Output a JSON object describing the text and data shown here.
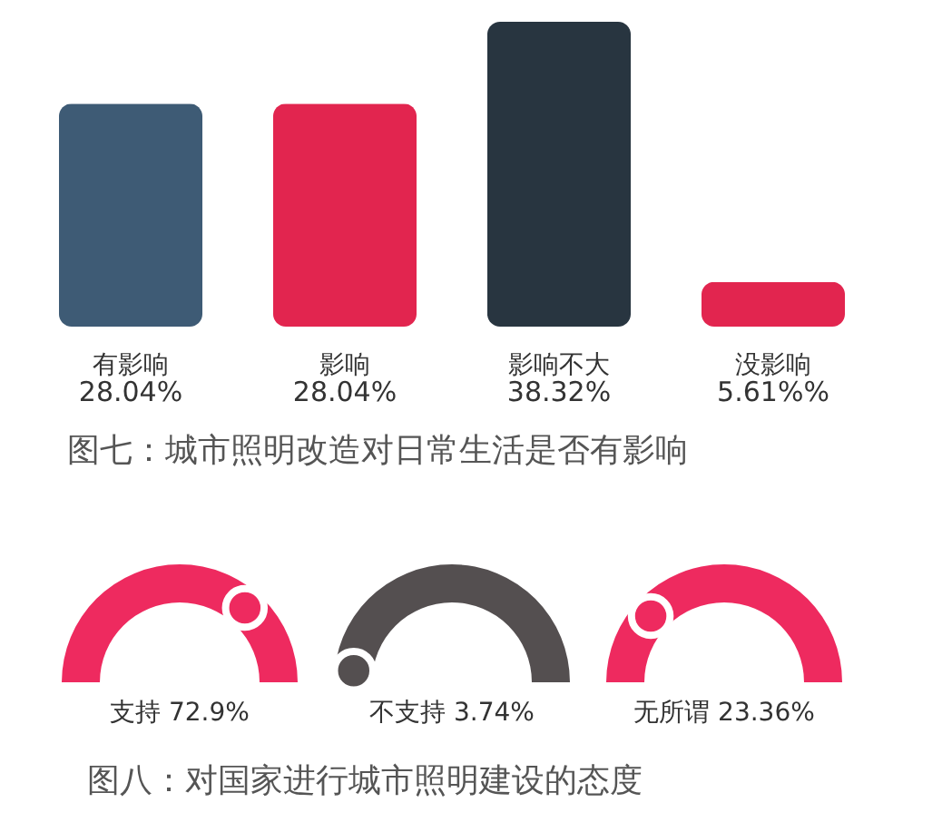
{
  "chart_data": [
    {
      "type": "bar",
      "title": "图七：城市照明改造对日常生活是否有影响",
      "categories": [
        "有影响",
        "影响",
        "影响不大",
        "没影响"
      ],
      "values": [
        28.04,
        28.04,
        38.32,
        5.61
      ],
      "colors": [
        "#3e5b75",
        "#e2254f",
        "#283540",
        "#e2254f"
      ],
      "value_labels": [
        "28.04%",
        "28.04%",
        "38.32%",
        "5.61%%"
      ]
    },
    {
      "type": "other",
      "title": "图八：对国家进行城市照明建设的态度",
      "categories": [
        "支持",
        "不支持",
        "无所谓"
      ],
      "values": [
        72.9,
        3.74,
        23.36
      ],
      "colors": [
        "#ee2a5f",
        "#544f50",
        "#ee2a5f"
      ],
      "value_labels": [
        "72.9%",
        "3.74%",
        "23.36%"
      ]
    }
  ]
}
